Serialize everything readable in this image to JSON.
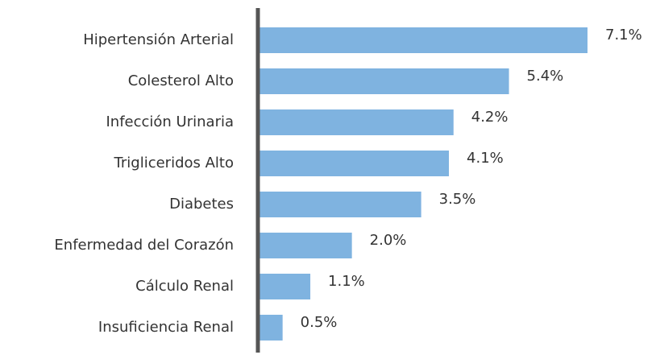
{
  "chart_data": {
    "type": "bar",
    "orientation": "horizontal",
    "categories": [
      "Hipertensión Arterial",
      "Colesterol Alto",
      "Infección Urinaria",
      "Trigliceridos Alto",
      "Diabetes",
      "Enfermedad del Corazón",
      "Cálculo Renal",
      "Insuficiencia Renal"
    ],
    "values": [
      7.1,
      5.4,
      4.2,
      4.1,
      3.5,
      2.0,
      1.1,
      0.5
    ],
    "value_labels": [
      "7.1%",
      "5.4%",
      "4.2%",
      "4.1%",
      "3.5%",
      "2.0%",
      "1.1%",
      "0.5%"
    ],
    "color": "#7fb3e0"
  }
}
